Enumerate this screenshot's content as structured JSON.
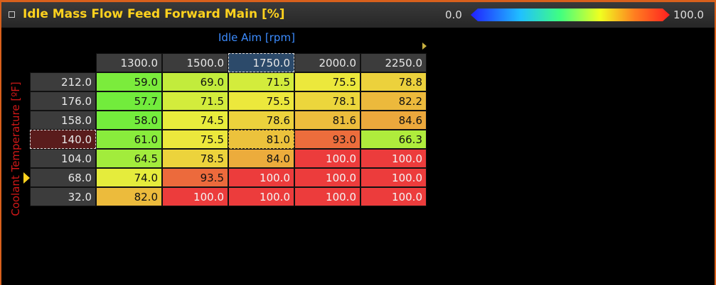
{
  "header": {
    "title": "Idle Mass Flow Feed Forward Main [%]",
    "legend_min": "0.0",
    "legend_max": "100.0"
  },
  "table": {
    "x_axis_label": "Idle Aim [rpm]",
    "y_axis_label": "Coolant Temperature [ºF]",
    "columns": [
      "1300.0",
      "1500.0",
      "1750.0",
      "2000.0",
      "2250.0"
    ],
    "rows": [
      {
        "label": "212.0",
        "cells": [
          "59.0",
          "69.0",
          "71.5",
          "75.5",
          "78.8"
        ]
      },
      {
        "label": "176.0",
        "cells": [
          "57.7",
          "71.5",
          "75.5",
          "78.1",
          "82.2"
        ]
      },
      {
        "label": "158.0",
        "cells": [
          "58.0",
          "74.5",
          "78.6",
          "81.6",
          "84.6"
        ]
      },
      {
        "label": "140.0",
        "cells": [
          "61.0",
          "75.5",
          "81.0",
          "93.0",
          "66.3"
        ]
      },
      {
        "label": "104.0",
        "cells": [
          "64.5",
          "78.5",
          "84.0",
          "100.0",
          "100.0"
        ]
      },
      {
        "label": "68.0",
        "cells": [
          "74.0",
          "93.5",
          "100.0",
          "100.0",
          "100.0"
        ]
      },
      {
        "label": "32.0",
        "cells": [
          "82.0",
          "100.0",
          "100.0",
          "100.0",
          "100.0"
        ]
      }
    ]
  }
}
